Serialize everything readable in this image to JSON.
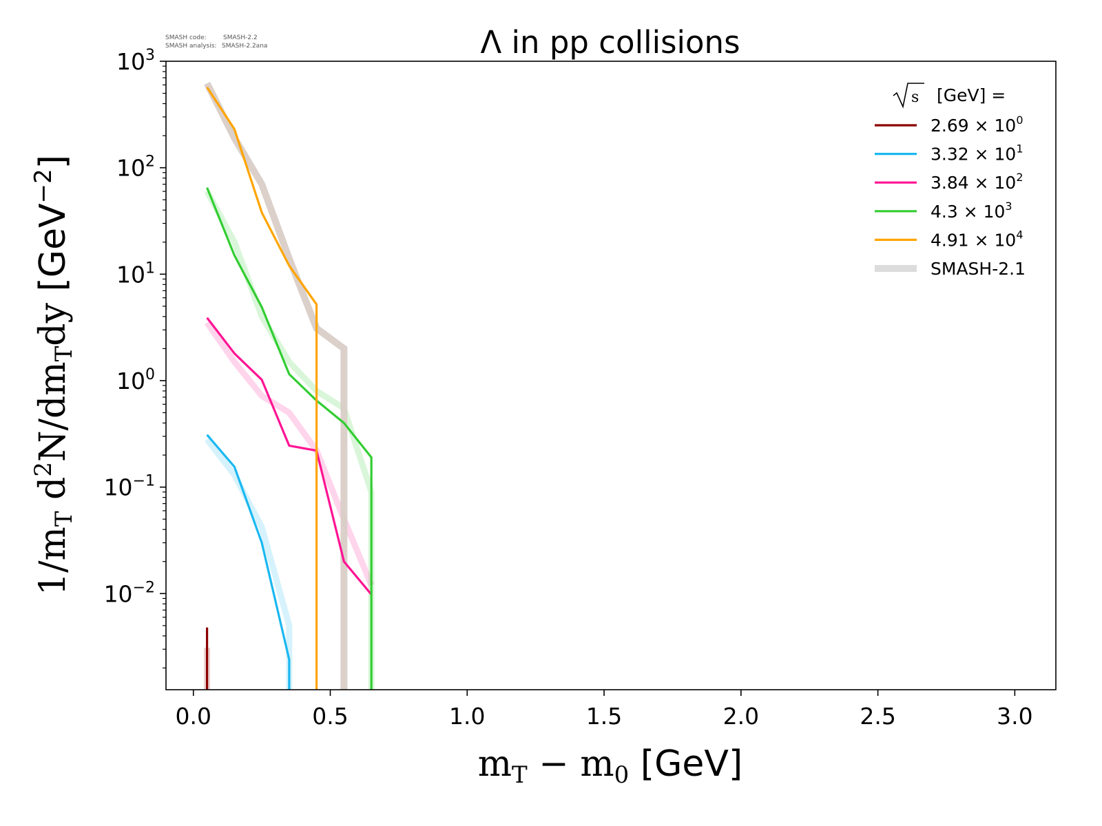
{
  "meta": {
    "code_label": "SMASH code:",
    "code_value": "SMASH-2.2",
    "analysis_label": "SMASH analysis:",
    "analysis_value": "SMASH-2.2ana"
  },
  "chart_data": {
    "type": "line",
    "title": "Λ in pp collisions",
    "xlabel": "m_T − m_0 [GeV]",
    "ylabel": "1/m_T d²N/dm_T dy [GeV⁻²]",
    "xlim": [
      -0.1,
      3.15
    ],
    "ylim": [
      0.00125,
      1000
    ],
    "yscale": "log",
    "grid": false,
    "x_ticks": [
      {
        "value": 0.0,
        "label": "0.0"
      },
      {
        "value": 0.5,
        "label": "0.5"
      },
      {
        "value": 1.0,
        "label": "1.0"
      },
      {
        "value": 1.5,
        "label": "1.5"
      },
      {
        "value": 2.0,
        "label": "2.0"
      },
      {
        "value": 2.5,
        "label": "2.5"
      },
      {
        "value": 3.0,
        "label": "3.0"
      }
    ],
    "y_ticks": [
      {
        "value": 0.01,
        "base": "10",
        "exp": "−2"
      },
      {
        "value": 0.1,
        "base": "10",
        "exp": "−1"
      },
      {
        "value": 1,
        "base": "10",
        "exp": "0"
      },
      {
        "value": 10,
        "base": "10",
        "exp": "1"
      },
      {
        "value": 100,
        "base": "10",
        "exp": "2"
      },
      {
        "value": 1000,
        "base": "10",
        "exp": "3"
      }
    ],
    "legend": {
      "placement": "top-right",
      "title": "[GeV] ="
    },
    "series": [
      {
        "name": "2.69 × 10⁰",
        "mant": "2.69",
        "exp": "0",
        "color": "#8b0000",
        "x": [
          0.05,
          0.05
        ],
        "y": [
          0.0048,
          0.00125
        ],
        "ref_x": [
          0.05,
          0.05
        ],
        "ref_y": [
          0.0031,
          0.00125
        ]
      },
      {
        "name": "3.32 × 10¹",
        "mant": "3.32",
        "exp": "1",
        "color": "#1ab8f0",
        "x": [
          0.05,
          0.15,
          0.25,
          0.35,
          0.35
        ],
        "y": [
          0.31,
          0.155,
          0.03,
          0.0024,
          0.00125
        ],
        "ref_x": [
          0.05,
          0.15,
          0.25,
          0.35,
          0.35
        ],
        "ref_y": [
          0.28,
          0.13,
          0.042,
          0.005,
          0.00125
        ]
      },
      {
        "name": "3.84 × 10²",
        "mant": "3.84",
        "exp": "2",
        "color": "#ff1493",
        "x": [
          0.05,
          0.15,
          0.25,
          0.35,
          0.45,
          0.55,
          0.65
        ],
        "y": [
          3.9,
          1.8,
          1.02,
          0.245,
          0.22,
          0.02,
          0.0098
        ],
        "ref_x": [
          0.05,
          0.15,
          0.25,
          0.35,
          0.45,
          0.55,
          0.65
        ],
        "ref_y": [
          3.5,
          1.5,
          0.72,
          0.5,
          0.22,
          0.05,
          0.012
        ]
      },
      {
        "name": "4.3 × 10³",
        "mant": "4.3",
        "exp": "3",
        "color": "#32cd32",
        "x": [
          0.05,
          0.15,
          0.25,
          0.35,
          0.45,
          0.55,
          0.65,
          0.65
        ],
        "y": [
          65,
          15,
          4.9,
          1.15,
          0.65,
          0.4,
          0.19,
          0.00125
        ],
        "ref_x": [
          0.05,
          0.15,
          0.25,
          0.35,
          0.45,
          0.55,
          0.65,
          0.65
        ],
        "ref_y": [
          60,
          20,
          4.0,
          1.5,
          0.8,
          0.55,
          0.09,
          0.00125
        ]
      },
      {
        "name": "4.91 × 10⁴",
        "mant": "4.91",
        "exp": "4",
        "color": "#ffa500",
        "x": [
          0.05,
          0.15,
          0.25,
          0.35,
          0.45,
          0.45
        ],
        "y": [
          570,
          230,
          38,
          12,
          5.2,
          0.00125
        ]
      }
    ],
    "reference_series": {
      "name": "SMASH-2.1",
      "color": "#d9cdc7",
      "legend_color": "#dcdcdc",
      "x": [
        0.05,
        0.15,
        0.25,
        0.35,
        0.45,
        0.55,
        0.55
      ],
      "y": [
        620,
        190,
        70,
        14,
        3.1,
        2.0,
        0.00125
      ]
    }
  }
}
